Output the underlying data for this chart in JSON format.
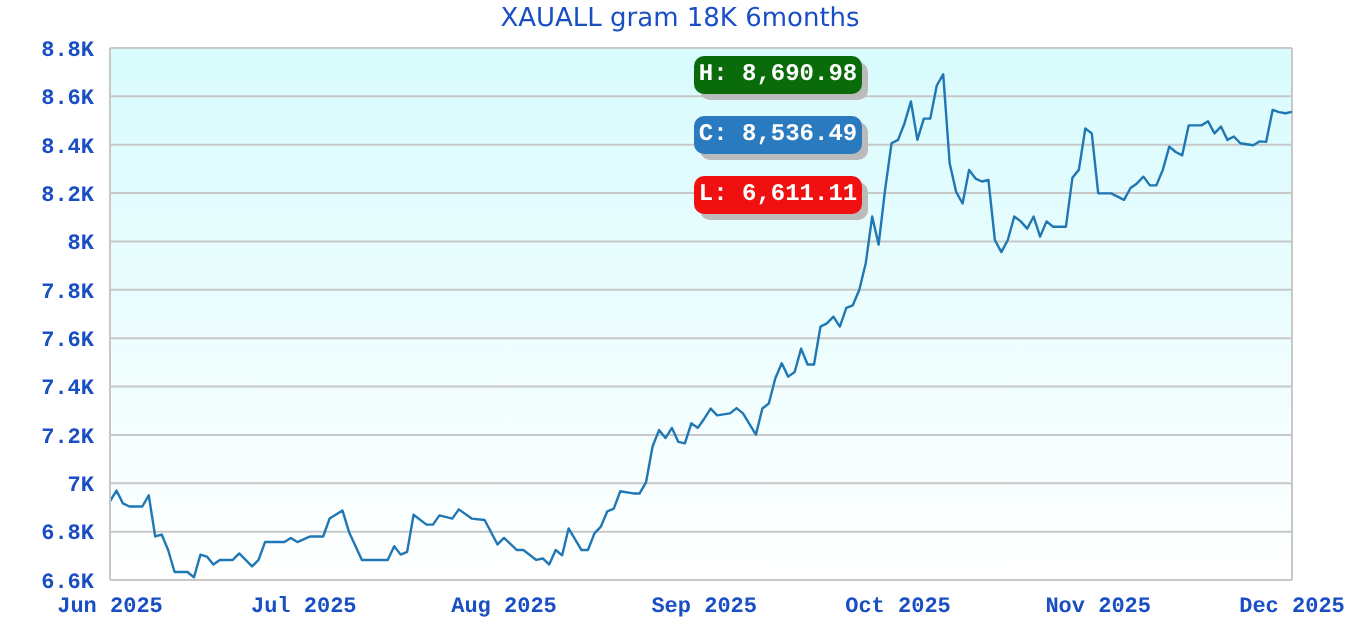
{
  "chart_data": {
    "type": "line",
    "title": "XAUALL gram 18K 6months",
    "annotations": [
      "H: 8,690.98",
      "C: 8,536.49",
      "L: 6,611.11"
    ],
    "x": [
      "2025-06-01",
      "2025-06-02",
      "2025-06-03",
      "2025-06-04",
      "2025-06-06",
      "2025-06-07",
      "2025-06-08",
      "2025-06-09",
      "2025-06-10",
      "2025-06-11",
      "2025-06-13",
      "2025-06-14",
      "2025-06-15",
      "2025-06-16",
      "2025-06-17",
      "2025-06-18",
      "2025-06-20",
      "2025-06-21",
      "2025-06-23",
      "2025-06-24",
      "2025-06-25",
      "2025-06-28",
      "2025-06-29",
      "2025-06-30",
      "2025-07-02",
      "2025-07-04",
      "2025-07-05",
      "2025-07-07",
      "2025-07-08",
      "2025-07-10",
      "2025-07-14",
      "2025-07-15",
      "2025-07-16",
      "2025-07-17",
      "2025-07-18",
      "2025-07-20",
      "2025-07-21",
      "2025-07-22",
      "2025-07-24",
      "2025-07-25",
      "2025-07-27",
      "2025-07-29",
      "2025-07-31",
      "2025-08-01",
      "2025-08-03",
      "2025-08-04",
      "2025-08-06",
      "2025-08-07",
      "2025-08-08",
      "2025-08-09",
      "2025-08-10",
      "2025-08-11",
      "2025-08-13",
      "2025-08-14",
      "2025-08-15",
      "2025-08-16",
      "2025-08-17",
      "2025-08-18",
      "2025-08-19",
      "2025-08-21",
      "2025-08-22",
      "2025-08-23",
      "2025-08-24",
      "2025-08-25",
      "2025-08-26",
      "2025-08-27",
      "2025-08-28",
      "2025-08-29",
      "2025-08-30",
      "2025-08-31",
      "2025-09-01",
      "2025-09-02",
      "2025-09-03",
      "2025-09-05",
      "2025-09-06",
      "2025-09-07",
      "2025-09-09",
      "2025-09-10",
      "2025-09-11",
      "2025-09-12",
      "2025-09-13",
      "2025-09-14",
      "2025-09-15",
      "2025-09-16",
      "2025-09-17",
      "2025-09-18",
      "2025-09-19",
      "2025-09-20",
      "2025-09-21",
      "2025-09-22",
      "2025-09-23",
      "2025-09-24",
      "2025-09-25",
      "2025-09-26",
      "2025-09-27",
      "2025-09-28",
      "2025-09-29",
      "2025-09-30",
      "2025-10-01",
      "2025-10-02",
      "2025-10-03",
      "2025-10-04",
      "2025-10-05",
      "2025-10-06",
      "2025-10-07",
      "2025-10-08",
      "2025-10-09",
      "2025-10-10",
      "2025-10-11",
      "2025-10-12",
      "2025-10-13",
      "2025-10-14",
      "2025-10-15",
      "2025-10-16",
      "2025-10-17",
      "2025-10-18",
      "2025-10-19",
      "2025-10-20",
      "2025-10-21",
      "2025-10-22",
      "2025-10-23",
      "2025-10-24",
      "2025-10-25",
      "2025-10-27",
      "2025-10-28",
      "2025-10-29",
      "2025-10-30",
      "2025-10-31",
      "2025-11-01",
      "2025-11-03",
      "2025-11-05",
      "2025-11-06",
      "2025-11-07",
      "2025-11-08",
      "2025-11-09",
      "2025-11-10",
      "2025-11-11",
      "2025-11-12",
      "2025-11-13",
      "2025-11-14",
      "2025-11-15",
      "2025-11-17",
      "2025-11-18",
      "2025-11-19",
      "2025-11-20",
      "2025-11-21",
      "2025-11-22",
      "2025-11-23",
      "2025-11-25",
      "2025-11-26",
      "2025-11-27",
      "2025-11-28",
      "2025-11-29",
      "2025-11-30",
      "2025-12-01"
    ],
    "series": [
      {
        "color": "#1f77b4",
        "values": [
          6925,
          6970,
          6917,
          6904,
          6904,
          6950,
          6780,
          6788,
          6724,
          6633,
          6633,
          6611,
          6705,
          6697,
          6664,
          6683,
          6683,
          6710,
          6656,
          6683,
          6757,
          6757,
          6774,
          6757,
          6780,
          6780,
          6854,
          6887,
          6799,
          6683,
          6683,
          6740,
          6705,
          6716,
          6870,
          6829,
          6829,
          6867,
          6854,
          6892,
          6854,
          6848,
          6747,
          6774,
          6724,
          6724,
          6683,
          6689,
          6664,
          6724,
          6702,
          6813,
          6724,
          6724,
          6793,
          6821,
          6884,
          6895,
          6967,
          6958,
          6958,
          7005,
          7152,
          7220,
          7187,
          7229,
          7171,
          7165,
          7248,
          7229,
          7267,
          7309,
          7281,
          7289,
          7311,
          7289,
          7201,
          7309,
          7330,
          7433,
          7496,
          7441,
          7460,
          7557,
          7491,
          7491,
          7648,
          7661,
          7689,
          7648,
          7725,
          7736,
          7799,
          7909,
          8103,
          7987,
          8213,
          8406,
          8420,
          8488,
          8579,
          8420,
          8508,
          8508,
          8645,
          8691,
          8323,
          8205,
          8157,
          8296,
          8260,
          8248,
          8254,
          8006,
          7956,
          8006,
          8103,
          8083,
          8053,
          8103,
          8020,
          8083,
          8061,
          8061,
          8263,
          8296,
          8467,
          8447,
          8199,
          8199,
          8172,
          8221,
          8240,
          8268,
          8232,
          8232,
          8296,
          8392,
          8370,
          8356,
          8480,
          8480,
          8497,
          8447,
          8475,
          8420,
          8434,
          8406,
          8398,
          8414,
          8412,
          8544,
          8535,
          8530,
          8536
        ]
      }
    ],
    "xlim": [
      "2025-06-01",
      "2025-12-01"
    ],
    "xticks": [
      {
        "value": "2025-06-01",
        "label": "Jun 2025"
      },
      {
        "value": "2025-07-01",
        "label": "Jul 2025"
      },
      {
        "value": "2025-08-01",
        "label": "Aug 2025"
      },
      {
        "value": "2025-09-01",
        "label": "Sep 2025"
      },
      {
        "value": "2025-10-01",
        "label": "Oct 2025"
      },
      {
        "value": "2025-11-01",
        "label": "Nov 2025"
      },
      {
        "value": "2025-12-01",
        "label": "Dec 2025"
      }
    ],
    "ylim": [
      6600,
      8800
    ],
    "yticks": [
      {
        "value": 6600,
        "label": "6.6K"
      },
      {
        "value": 6800,
        "label": "6.8K"
      },
      {
        "value": 7000,
        "label": "7K"
      },
      {
        "value": 7200,
        "label": "7.2K"
      },
      {
        "value": 7400,
        "label": "7.4K"
      },
      {
        "value": 7600,
        "label": "7.6K"
      },
      {
        "value": 7800,
        "label": "7.8K"
      },
      {
        "value": 8000,
        "label": "8K"
      },
      {
        "value": 8200,
        "label": "8.2K"
      },
      {
        "value": 8400,
        "label": "8.4K"
      },
      {
        "value": 8600,
        "label": "8.6K"
      },
      {
        "value": 8800,
        "label": "8.8K"
      }
    ],
    "grid": "y",
    "marker": "none",
    "line_style": "solid"
  }
}
